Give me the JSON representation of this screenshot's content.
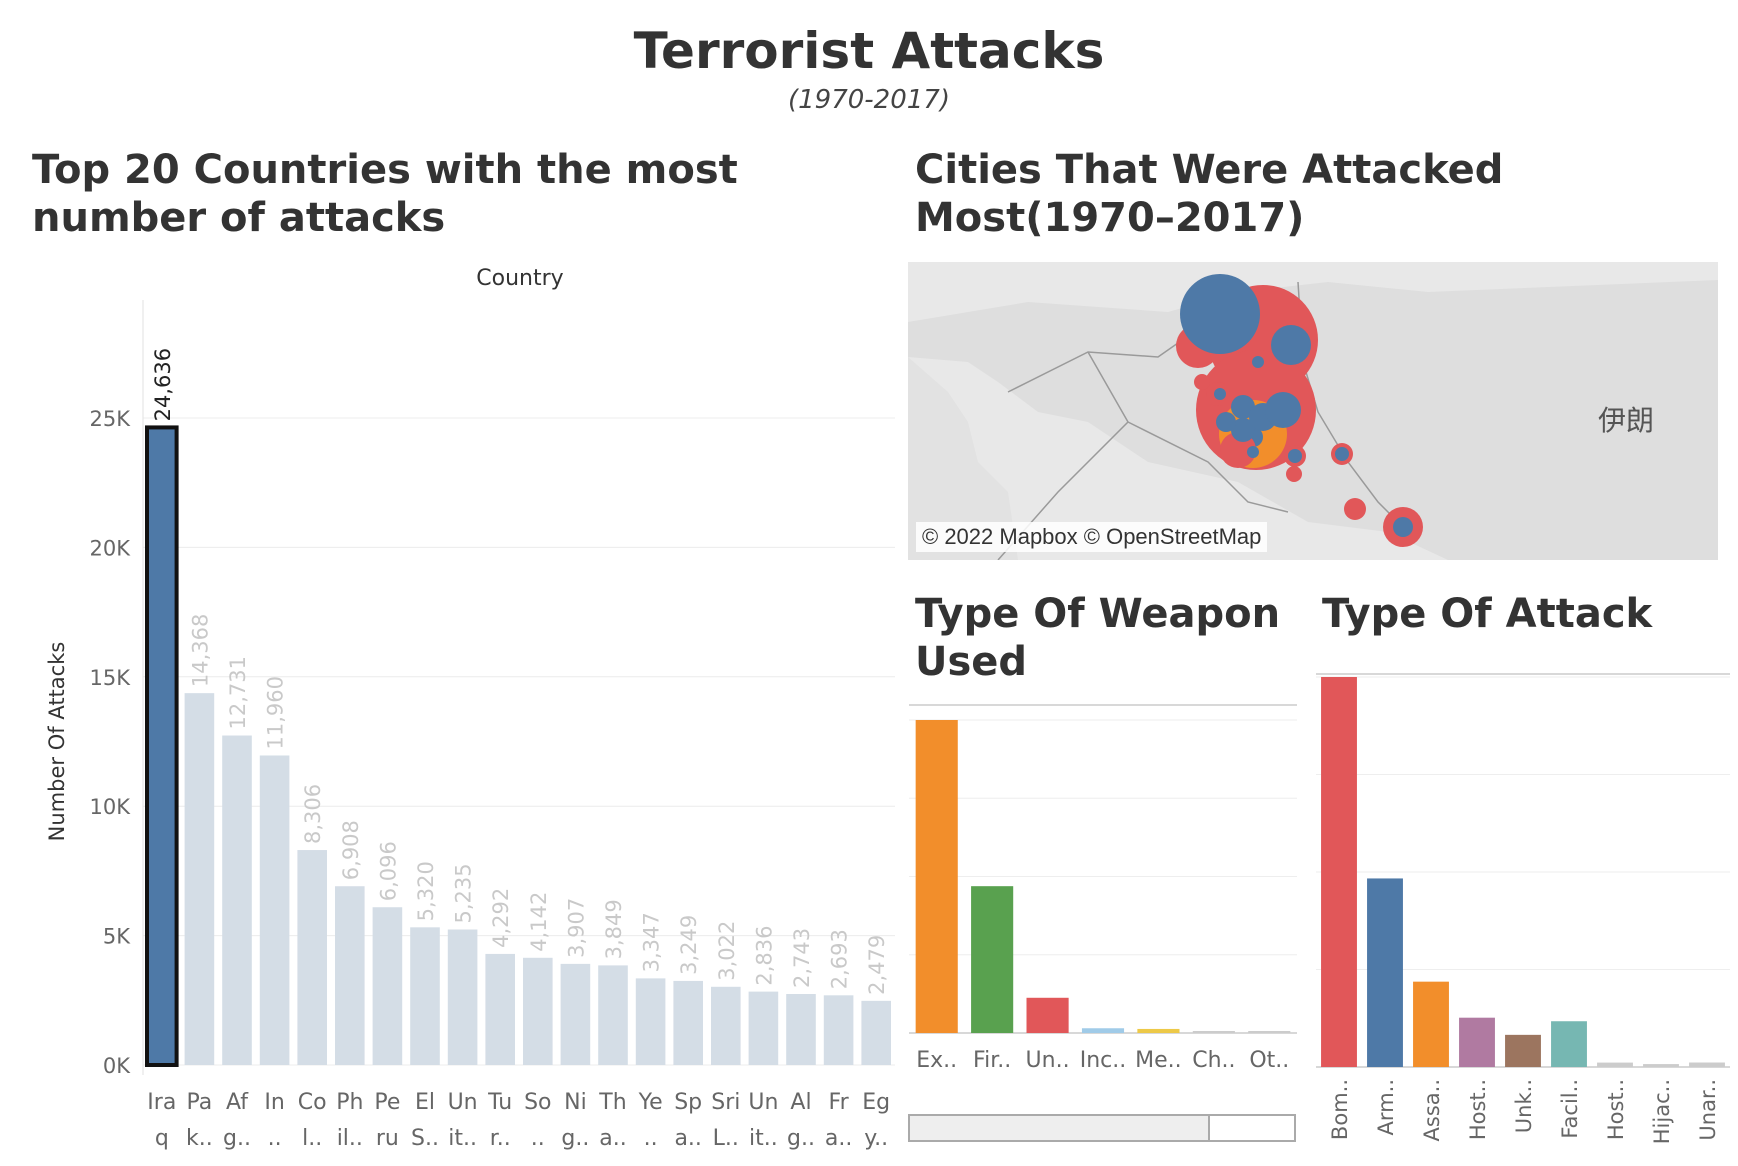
{
  "header": {
    "title": "Terrorist Attacks",
    "subtitle": "(1970-2017)"
  },
  "sections": {
    "countries": "Top 20 Countries with the most number of attacks",
    "cities": "Cities That Were Attacked Most(1970–2017)",
    "weapon": "Type Of Weapon Used",
    "attack": "Type Of Attack"
  },
  "map": {
    "attribution": "© 2022 Mapbox © OpenStreetMap",
    "label": "伊朗",
    "colors": {
      "land": "#e3e3e3",
      "border": "#9a9a9a",
      "red": "#e15759",
      "blue": "#4e79a7",
      "orange": "#f28e2b"
    }
  },
  "colors": {
    "highlight": "#4e79a7",
    "muted": "#d4dde6",
    "muted_label": "#c9c9c9",
    "grid": "#ececec",
    "axis_text": "#666666"
  },
  "chart_data": [
    {
      "type": "bar",
      "title": "Country",
      "ylabel": "Number Of Attacks",
      "ylim": [
        0,
        29000
      ],
      "yticks": [
        0,
        5000,
        10000,
        15000,
        20000,
        25000
      ],
      "ytick_labels": [
        "0K",
        "5K",
        "10K",
        "15K",
        "20K",
        "25K"
      ],
      "grid": true,
      "highlighted_index": 0,
      "categories": [
        [
          "Ira",
          "q"
        ],
        [
          "Pa",
          "k.."
        ],
        [
          "Af",
          "g.."
        ],
        [
          "In",
          ".."
        ],
        [
          "Co",
          "l.."
        ],
        [
          "Ph",
          "il.."
        ],
        [
          "Pe",
          "ru"
        ],
        [
          "El",
          "S.."
        ],
        [
          "Un",
          "it.."
        ],
        [
          "Tu",
          "r.."
        ],
        [
          "So",
          ".."
        ],
        [
          "Ni",
          "g.."
        ],
        [
          "Th",
          "a.."
        ],
        [
          "Ye",
          ".."
        ],
        [
          "Sp",
          "a.."
        ],
        [
          "Sri",
          "L.."
        ],
        [
          "Un",
          "it.."
        ],
        [
          "Al",
          "g.."
        ],
        [
          "Fr",
          "a.."
        ],
        [
          "Eg",
          "y.."
        ]
      ],
      "values": [
        24636,
        14368,
        12731,
        11960,
        8306,
        6908,
        6096,
        5320,
        5235,
        4292,
        4142,
        3907,
        3849,
        3347,
        3249,
        3022,
        2836,
        2743,
        2693,
        2479
      ],
      "value_labels": [
        "24,636",
        "14,368",
        "12,731",
        "11,960",
        "8,306",
        "6,908",
        "6,096",
        "5,320",
        "5,235",
        "4,292",
        "4,142",
        "3,907",
        "3,849",
        "3,347",
        "3,249",
        "3,022",
        "2,836",
        "2,743",
        "2,693",
        "2,479"
      ]
    },
    {
      "type": "bar",
      "title": "Type Of Weapon Used",
      "grid": true,
      "categories": [
        "Ex..",
        "Fir..",
        "Un..",
        "Inc..",
        "Me..",
        "Ch..",
        "Ot.."
      ],
      "values": [
        92426,
        43355,
        10400,
        1400,
        1200,
        280,
        120
      ],
      "colors": [
        "#f28e2b",
        "#59a14f",
        "#e15759",
        "#a0cbe8",
        "#edc948",
        "#cccccc",
        "#cccccc"
      ]
    },
    {
      "type": "bar",
      "title": "Type Of Attack",
      "grid": true,
      "categories": [
        "Bom..",
        "Arm..",
        "Assa..",
        "Host..",
        "Unk..",
        "Facil..",
        "Host..",
        "Hijac..",
        "Unar.."
      ],
      "values": [
        88255,
        42669,
        19312,
        11158,
        7276,
        10356,
        1000,
        660,
        1015
      ],
      "colors": [
        "#e15759",
        "#4e79a7",
        "#f28e2b",
        "#b07aa1",
        "#9c755f",
        "#76b7b2",
        "#cccccc",
        "#cccccc",
        "#cccccc"
      ]
    }
  ]
}
